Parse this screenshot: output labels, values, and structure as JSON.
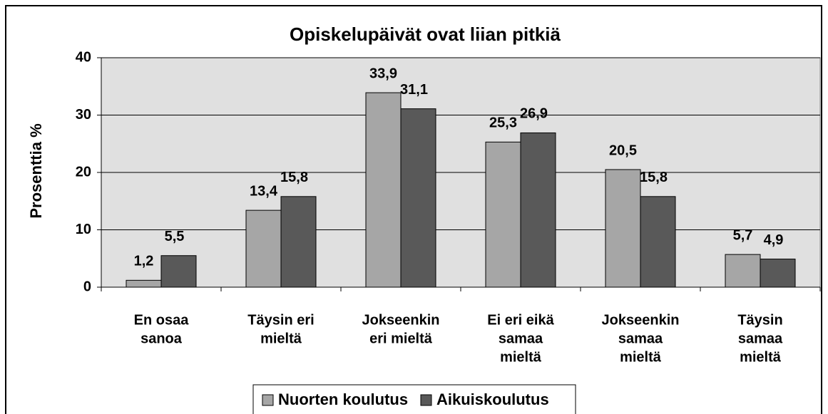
{
  "chart_data": {
    "type": "bar",
    "title": "Opiskelupäivät ovat liian pitkiä",
    "y_label": "Prosenttia %",
    "categories": [
      [
        "En osaa",
        "sanoa"
      ],
      [
        "Täysin eri",
        "mieltä"
      ],
      [
        "Jokseenkin",
        "eri mieltä"
      ],
      [
        "Ei eri eikä",
        "samaa",
        "mieltä"
      ],
      [
        "Jokseenkin",
        "samaa",
        "mieltä"
      ],
      [
        "Täysin",
        "samaa",
        "mieltä"
      ]
    ],
    "series": [
      {
        "name": "Nuorten koulutus",
        "color": "#a6a6a6",
        "values": [
          1.2,
          13.4,
          33.9,
          25.3,
          20.5,
          5.7
        ],
        "value_labels": [
          "1,2",
          "13,4",
          "33,9",
          "25,3",
          "20,5",
          "5,7"
        ]
      },
      {
        "name": "Aikuiskoulutus",
        "color": "#595959",
        "values": [
          5.5,
          15.8,
          31.1,
          26.9,
          15.8,
          4.9
        ],
        "value_labels": [
          "5,5",
          "15,8",
          "31,1",
          "26,9",
          "15,8",
          "4,9"
        ]
      }
    ],
    "ylim": [
      0,
      40
    ],
    "yticks": [
      0,
      10,
      20,
      30,
      40
    ],
    "grid": true,
    "legend": "bottom"
  }
}
